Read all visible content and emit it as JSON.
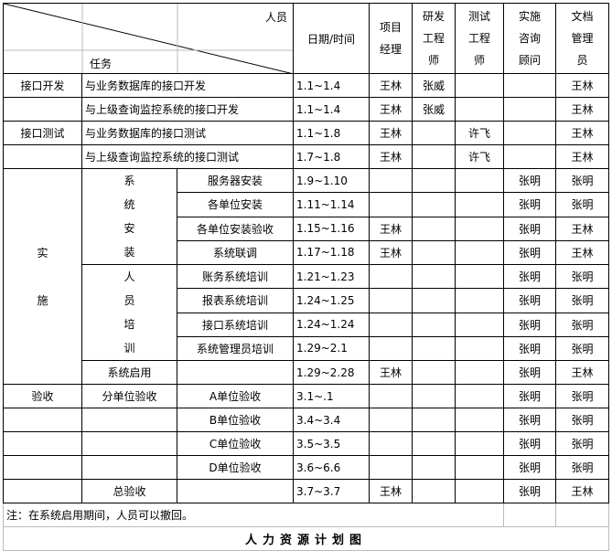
{
  "header": {
    "personnel": "人员",
    "task": "任务",
    "date": "日期/时间",
    "roles": [
      "项目经理",
      "研发工程师",
      "测试工程师",
      "实施咨询顾问",
      "文档管理员"
    ]
  },
  "interface_rows": [
    {
      "cat": "接口开发",
      "task": "与业务数据库的接口开发",
      "date": "1.1~1.4",
      "pm": "王林",
      "dev": "张威",
      "test": "",
      "impl": "",
      "doc": "王林"
    },
    {
      "cat": "",
      "task": "与上级查询监控系统的接口开发",
      "date": "1.1~1.4",
      "pm": "王林",
      "dev": "张威",
      "test": "",
      "impl": "",
      "doc": "王林"
    },
    {
      "cat": "接口测试",
      "task": "与业务数据库的接口测试",
      "date": "1.1~1.8",
      "pm": "王林",
      "dev": "",
      "test": "许飞",
      "impl": "",
      "doc": "王林"
    },
    {
      "cat": "",
      "task": "与上级查询监控系统的接口测试",
      "date": "1.7~1.8",
      "pm": "王林",
      "dev": "",
      "test": "许飞",
      "impl": "",
      "doc": "王林"
    }
  ],
  "implementation": {
    "label": "实施",
    "install_label": "系统安装",
    "training_label": "人员培训",
    "install_rows": [
      {
        "task": "服务器安装",
        "date": "1.9~1.10",
        "pm": "",
        "impl": "张明",
        "doc": "张明"
      },
      {
        "task": "各单位安装",
        "date": "1.11~1.14",
        "pm": "",
        "impl": "张明",
        "doc": "张明"
      },
      {
        "task": "各单位安装验收",
        "date": "1.15~1.16",
        "pm": "王林",
        "impl": "张明",
        "doc": "王林"
      },
      {
        "task": "系统联调",
        "date": "1.17~1.18",
        "pm": "王林",
        "impl": "张明",
        "doc": "王林"
      }
    ],
    "training_rows": [
      {
        "task": "账务系统培训",
        "date": "1.21~1.23",
        "pm": "",
        "impl": "张明",
        "doc": "张明"
      },
      {
        "task": "报表系统培训",
        "date": "1.24~1.25",
        "pm": "",
        "impl": "张明",
        "doc": "张明"
      },
      {
        "task": "接口系统培训",
        "date": "1.24~1.24",
        "pm": "",
        "impl": "张明",
        "doc": "张明"
      },
      {
        "task": "系统管理员培训",
        "date": "1.29~2.1",
        "pm": "",
        "impl": "张明",
        "doc": "张明"
      }
    ],
    "launch": {
      "task": "系统启用",
      "date": "1.29~2.28",
      "pm": "王林",
      "impl": "张明",
      "doc": "王林"
    }
  },
  "acceptance": {
    "label": "验收",
    "unit_label": "分单位验收",
    "unit_rows": [
      {
        "task": "A单位验收",
        "date": "3.1~.1",
        "impl": "张明",
        "doc": "张明"
      },
      {
        "task": "B单位验收",
        "date": "3.4~3.4",
        "impl": "张明",
        "doc": "张明"
      },
      {
        "task": "C单位验收",
        "date": "3.5~3.5",
        "impl": "张明",
        "doc": "张明"
      },
      {
        "task": "D单位验收",
        "date": "3.6~6.6",
        "impl": "张明",
        "doc": "张明"
      }
    ],
    "final": {
      "task": "总验收",
      "date": "3.7~3.7",
      "pm": "王林",
      "impl": "张明",
      "doc": "王林"
    }
  },
  "note": "注：在系统启用期间，人员可以撤回。",
  "caption": "人力资源计划图"
}
